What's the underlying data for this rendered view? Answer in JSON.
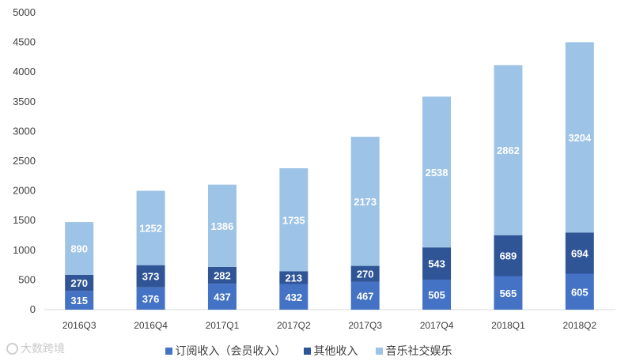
{
  "chart_data": {
    "type": "bar",
    "stacked": true,
    "categories": [
      "2016Q3",
      "2016Q4",
      "2017Q1",
      "2017Q2",
      "2017Q3",
      "2017Q4",
      "2018Q1",
      "2018Q2"
    ],
    "series": [
      {
        "name": "订阅收入（会员收入）",
        "color": "#4472C4",
        "values": [
          315,
          376,
          437,
          432,
          467,
          505,
          565,
          605
        ]
      },
      {
        "name": "其他收入",
        "color": "#2F5597",
        "values": [
          270,
          373,
          282,
          213,
          270,
          543,
          689,
          694
        ]
      },
      {
        "name": "音乐社交娱乐",
        "color": "#9DC3E6",
        "values": [
          890,
          1252,
          1386,
          1735,
          2173,
          2538,
          2862,
          3204
        ]
      }
    ],
    "ylim": [
      0,
      5000
    ],
    "yticks": [
      0,
      500,
      1000,
      1500,
      2000,
      2500,
      3000,
      3500,
      4000,
      4500,
      5000
    ],
    "grid": false,
    "legend_position": "bottom",
    "xlabel": "",
    "ylabel": ""
  },
  "watermark": {
    "text": "大数跨境",
    "icon": "circle-logo-icon"
  }
}
